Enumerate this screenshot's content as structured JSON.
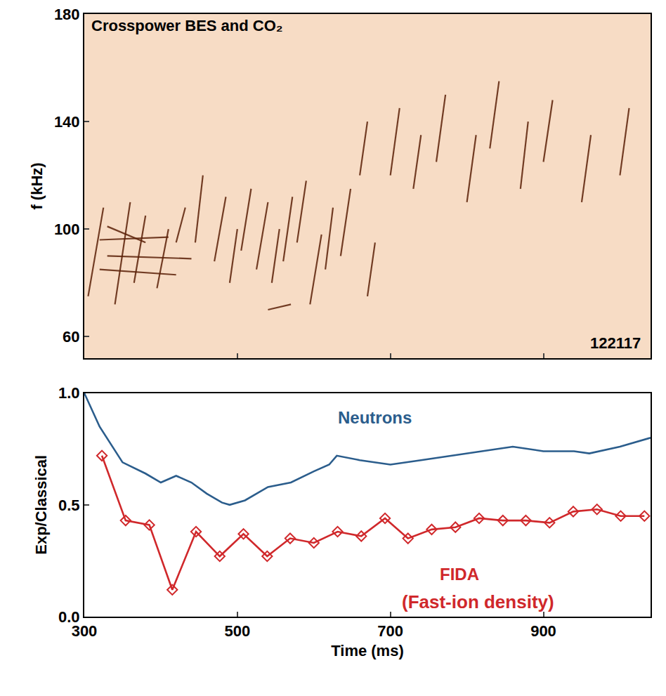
{
  "chart_data": [
    {
      "type": "line",
      "title": "Crosspower BES and CO₂",
      "y_label": "f (kHz)",
      "annotations": [
        "122117"
      ],
      "xlim": [
        300,
        1040
      ],
      "xticks": [
        300,
        500,
        700,
        900
      ],
      "ylim": [
        52,
        180
      ],
      "yticks": [
        60,
        100,
        140,
        180
      ],
      "tick_labels": "y",
      "grid": false,
      "color": "#5b2108",
      "line_style": "solid",
      "series": [
        {
          "x": [
            320,
            420
          ],
          "values": [
            85,
            83
          ]
        },
        {
          "x": [
            330,
            440
          ],
          "values": [
            90,
            89
          ]
        },
        {
          "x": [
            320,
            410
          ],
          "values": [
            96,
            97
          ]
        },
        {
          "x": [
            330,
            380
          ],
          "values": [
            101,
            95
          ]
        },
        {
          "x": [
            305,
            325
          ],
          "values": [
            75,
            108
          ]
        },
        {
          "x": [
            340,
            360
          ],
          "values": [
            72,
            110
          ]
        },
        {
          "x": [
            365,
            380
          ],
          "values": [
            80,
            105
          ]
        },
        {
          "x": [
            395,
            410
          ],
          "values": [
            78,
            100
          ]
        },
        {
          "x": [
            420,
            432
          ],
          "values": [
            95,
            108
          ]
        },
        {
          "x": [
            445,
            455
          ],
          "values": [
            95,
            120
          ]
        },
        {
          "x": [
            470,
            485
          ],
          "values": [
            88,
            112
          ]
        },
        {
          "x": [
            490,
            500
          ],
          "values": [
            80,
            100
          ]
        },
        {
          "x": [
            505,
            518
          ],
          "values": [
            92,
            115
          ]
        },
        {
          "x": [
            525,
            540
          ],
          "values": [
            85,
            110
          ]
        },
        {
          "x": [
            545,
            555
          ],
          "values": [
            80,
            100
          ]
        },
        {
          "x": [
            560,
            572
          ],
          "values": [
            88,
            112
          ]
        },
        {
          "x": [
            578,
            590
          ],
          "values": [
            95,
            118
          ]
        },
        {
          "x": [
            595,
            610
          ],
          "values": [
            72,
            98
          ]
        },
        {
          "x": [
            615,
            625
          ],
          "values": [
            85,
            108
          ]
        },
        {
          "x": [
            635,
            648
          ],
          "values": [
            90,
            115
          ]
        },
        {
          "x": [
            540,
            570
          ],
          "values": [
            70,
            72
          ]
        },
        {
          "x": [
            660,
            670
          ],
          "values": [
            120,
            140
          ]
        },
        {
          "x": [
            670,
            680
          ],
          "values": [
            75,
            95
          ]
        },
        {
          "x": [
            700,
            712
          ],
          "values": [
            120,
            145
          ]
        },
        {
          "x": [
            730,
            740
          ],
          "values": [
            115,
            135
          ]
        },
        {
          "x": [
            760,
            772
          ],
          "values": [
            125,
            150
          ]
        },
        {
          "x": [
            800,
            812
          ],
          "values": [
            110,
            135
          ]
        },
        {
          "x": [
            830,
            842
          ],
          "values": [
            130,
            155
          ]
        },
        {
          "x": [
            870,
            880
          ],
          "values": [
            115,
            140
          ]
        },
        {
          "x": [
            900,
            912
          ],
          "values": [
            125,
            148
          ]
        },
        {
          "x": [
            950,
            962
          ],
          "values": [
            110,
            135
          ]
        },
        {
          "x": [
            1000,
            1012
          ],
          "values": [
            120,
            145
          ]
        }
      ]
    },
    {
      "type": "line",
      "x_label": "Time (ms)",
      "y_label": "Exp/Classical",
      "annotations": [
        "(Fast-ion density)"
      ],
      "xlim": [
        300,
        1040
      ],
      "xticks": [
        300,
        500,
        700,
        900
      ],
      "ylim": [
        0,
        1
      ],
      "yticks": [
        {
          "value": 0,
          "label": "0.0"
        },
        0.5,
        {
          "value": 1,
          "label": "1.0"
        }
      ],
      "grid": false,
      "series": [
        {
          "name": "Neutrons",
          "color": "#2b5d8c",
          "line_style": "solid",
          "x": [
            300,
            320,
            350,
            380,
            400,
            420,
            440,
            460,
            480,
            490,
            510,
            540,
            570,
            600,
            620,
            630,
            660,
            700,
            740,
            800,
            860,
            900,
            940,
            960,
            1000,
            1040
          ],
          "values": [
            1.0,
            0.85,
            0.69,
            0.64,
            0.6,
            0.63,
            0.6,
            0.55,
            0.51,
            0.5,
            0.52,
            0.58,
            0.6,
            0.65,
            0.68,
            0.72,
            0.7,
            0.68,
            0.7,
            0.73,
            0.76,
            0.74,
            0.74,
            0.73,
            0.76,
            0.8
          ]
        },
        {
          "name": "FIDA",
          "color": "#d0282b",
          "line_style": "solid",
          "marker": "diamond-open",
          "x": [
            323,
            354,
            385,
            415,
            446,
            477,
            508,
            539,
            569,
            600,
            631,
            662,
            693,
            723,
            754,
            785,
            816,
            847,
            877,
            908,
            939,
            970,
            1001,
            1032
          ],
          "values": [
            0.72,
            0.43,
            0.41,
            0.12,
            0.38,
            0.27,
            0.37,
            0.27,
            0.35,
            0.33,
            0.38,
            0.36,
            0.44,
            0.35,
            0.39,
            0.4,
            0.44,
            0.43,
            0.43,
            0.42,
            0.47,
            0.48,
            0.45,
            0.45
          ]
        }
      ]
    }
  ]
}
